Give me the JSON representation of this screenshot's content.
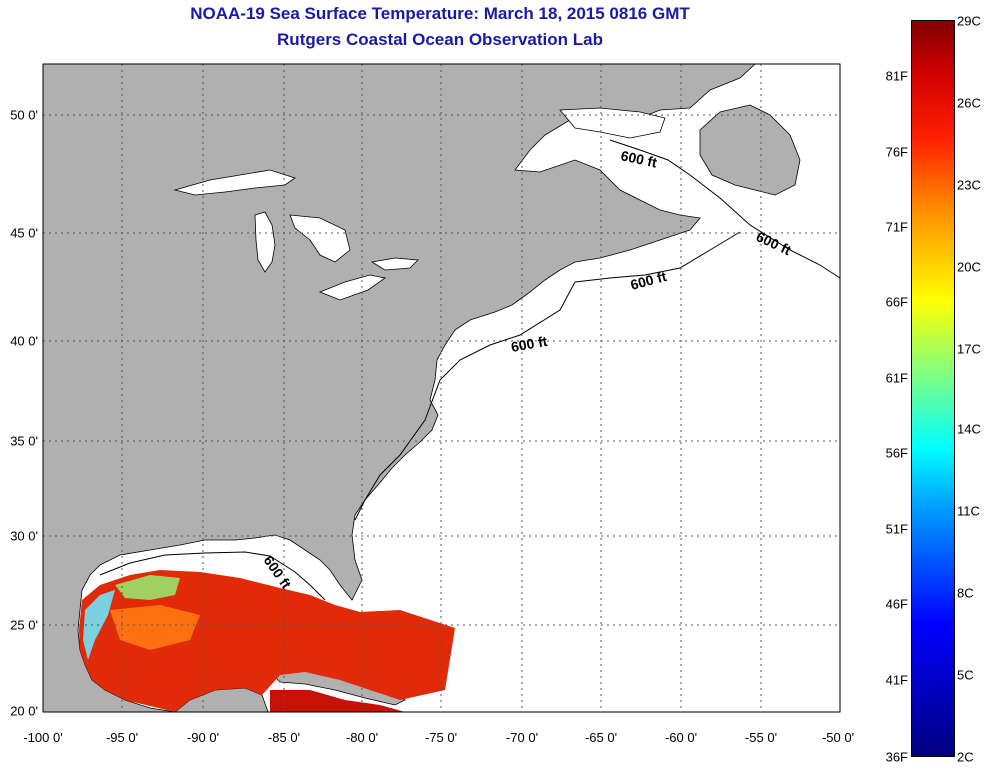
{
  "header": {
    "title": "NOAA-19 Sea Surface Temperature:  March 18, 2015 0816 GMT",
    "subtitle": "Rutgers Coastal Ocean Observation Lab"
  },
  "map": {
    "lon_labels": [
      "-100 0'",
      "-95 0'",
      "-90 0'",
      "-85 0'",
      "-80 0'",
      "-75 0'",
      "-70 0'",
      "-65 0'",
      "-60 0'",
      "-55 0'",
      "-50 0'"
    ],
    "lat_labels": [
      "50 0'",
      "45 0'",
      "40 0'",
      "35 0'",
      "30 0'",
      "25 0'",
      "20 0'"
    ],
    "contour_labels": [
      "600 ft",
      "600 ft",
      "600 ft",
      "600 ft",
      "600 ft"
    ],
    "colors": {
      "land": "#b0b0b0",
      "ocean": "#ffffff",
      "grid": "#555555"
    }
  },
  "colorbar": {
    "fahrenheit_labels": [
      "81F",
      "76F",
      "71F",
      "66F",
      "61F",
      "56F",
      "51F",
      "46F",
      "41F",
      "36F"
    ],
    "celsius_labels": [
      "29C",
      "26C",
      "23C",
      "20C",
      "17C",
      "14C",
      "11C",
      "8C",
      "5C",
      "2C"
    ],
    "color_stops": [
      "#00007f",
      "#0000ff",
      "#00a0ff",
      "#00ffff",
      "#80ff80",
      "#ffff00",
      "#ff9000",
      "#ff2000",
      "#d00000",
      "#800000"
    ]
  }
}
